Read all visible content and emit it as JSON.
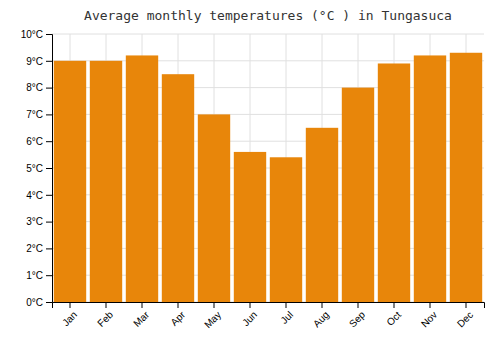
{
  "chart_data": {
    "type": "bar",
    "title": "Average monthly temperatures (°C ) in Tungasuca",
    "categories": [
      "Jan",
      "Feb",
      "Mar",
      "Apr",
      "May",
      "Jun",
      "Jul",
      "Aug",
      "Sep",
      "Oct",
      "Nov",
      "Dec"
    ],
    "values": [
      9.0,
      9.0,
      9.2,
      8.5,
      7.0,
      5.6,
      5.4,
      6.5,
      8.0,
      8.9,
      9.2,
      9.3
    ],
    "color": "#E8860A",
    "ylim": [
      0,
      10
    ],
    "yticks": [
      {
        "value": 0,
        "label": "0°C"
      },
      {
        "value": 1,
        "label": "1°C"
      },
      {
        "value": 2,
        "label": "2°C"
      },
      {
        "value": 3,
        "label": "3°C"
      },
      {
        "value": 4,
        "label": "4°C"
      },
      {
        "value": 5,
        "label": "5°C"
      },
      {
        "value": 6,
        "label": "6°C"
      },
      {
        "value": 7,
        "label": "7°C"
      },
      {
        "value": 8,
        "label": "8°C"
      },
      {
        "value": 9,
        "label": "9°C"
      },
      {
        "value": 10,
        "label": "10°C"
      }
    ],
    "grid": true
  }
}
